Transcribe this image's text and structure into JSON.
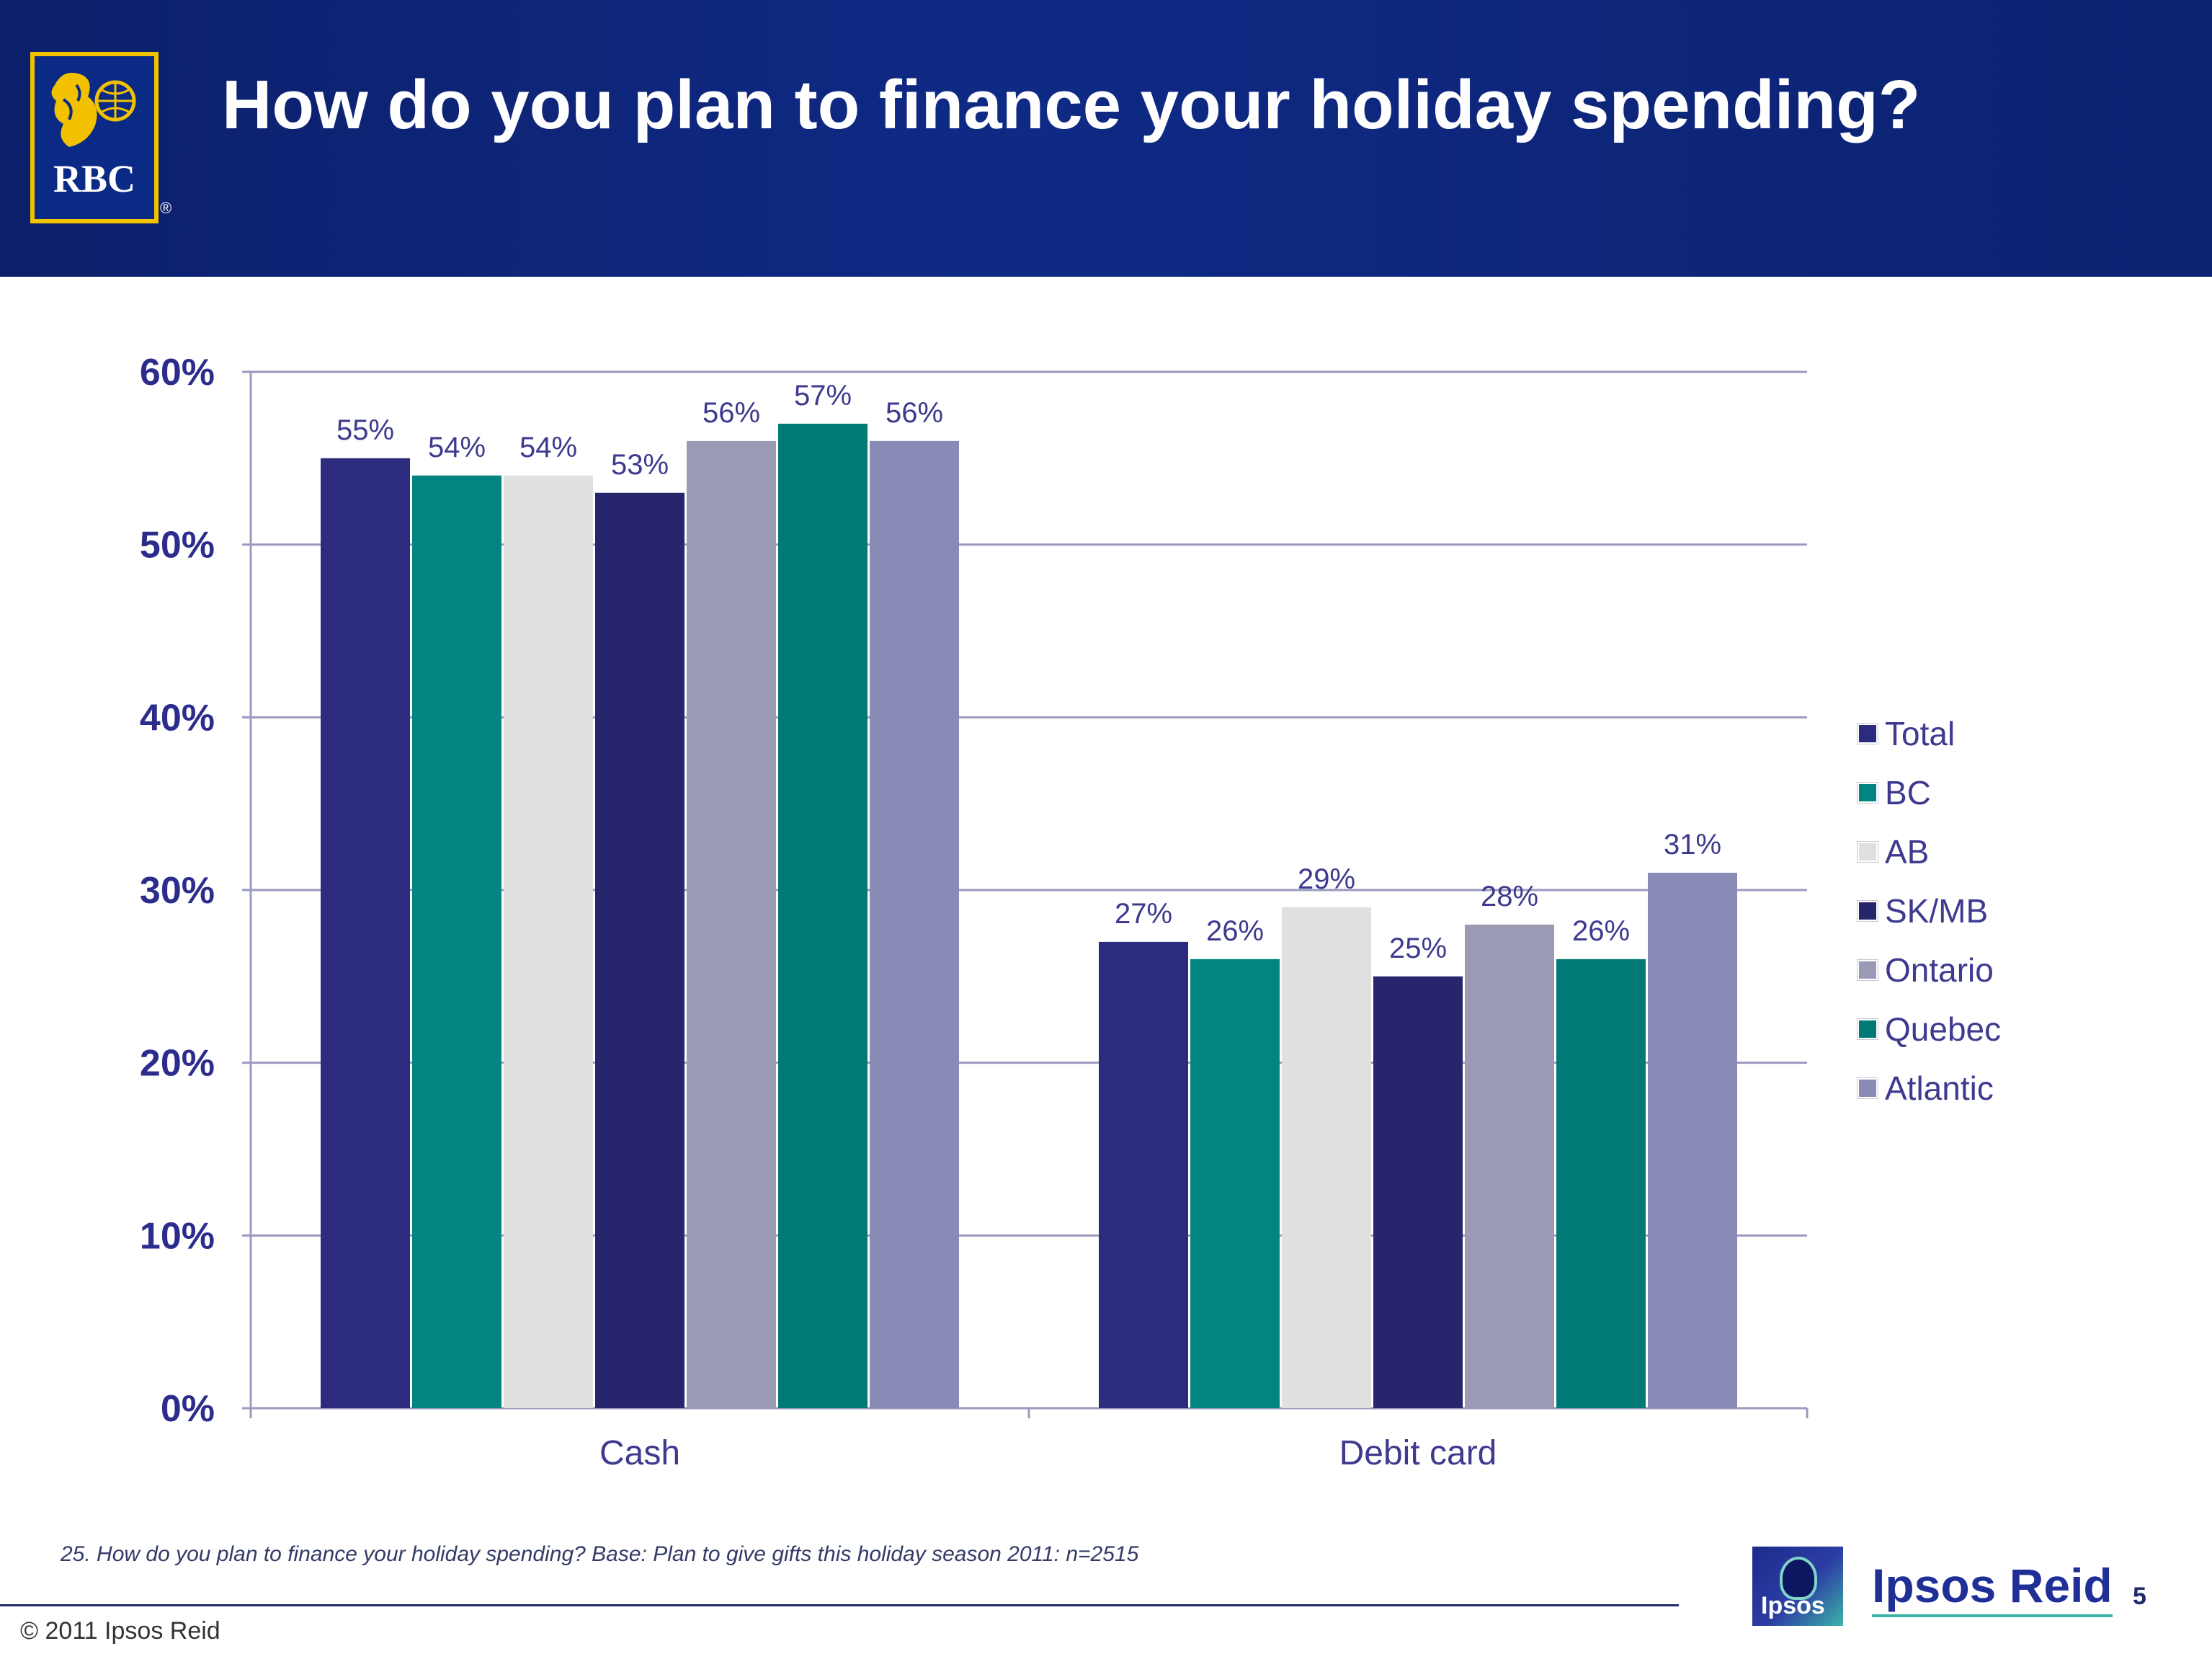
{
  "header": {
    "title": "How do you plan to finance your holiday spending?",
    "logo_text": "RBC"
  },
  "chart_data": {
    "type": "bar",
    "categories": [
      "Cash",
      "Debit card"
    ],
    "series": [
      {
        "name": "Total",
        "values": [
          55,
          27
        ],
        "color": "#2d2b7d"
      },
      {
        "name": "BC",
        "values": [
          54,
          26
        ],
        "color": "#028581"
      },
      {
        "name": "AB",
        "values": [
          54,
          29
        ],
        "color": "#e0e0e0"
      },
      {
        "name": "SK/MB",
        "values": [
          53,
          25
        ],
        "color": "#27266d"
      },
      {
        "name": "Ontario",
        "values": [
          56,
          28
        ],
        "color": "#9b9ab5"
      },
      {
        "name": "Quebec",
        "values": [
          57,
          26
        ],
        "color": "#017a76"
      },
      {
        "name": "Atlantic",
        "values": [
          56,
          31
        ],
        "color": "#8a8ab7"
      }
    ],
    "y_ticks": [
      "0%",
      "10%",
      "20%",
      "30%",
      "40%",
      "50%",
      "60%"
    ],
    "ylim": [
      0,
      60
    ],
    "value_suffix": "%",
    "grid": true,
    "legend_position": "right",
    "title": "",
    "xlabel": "",
    "ylabel": ""
  },
  "footer": {
    "footnote": "25. How do you plan to finance your holiday spending? Base: Plan to give gifts this holiday season  2011: n=2515",
    "copyright": "© 2011 Ipsos Reid",
    "ipsos_small": "Ipsos",
    "ipsos_brand": "Ipsos Reid",
    "page_number": "5"
  }
}
